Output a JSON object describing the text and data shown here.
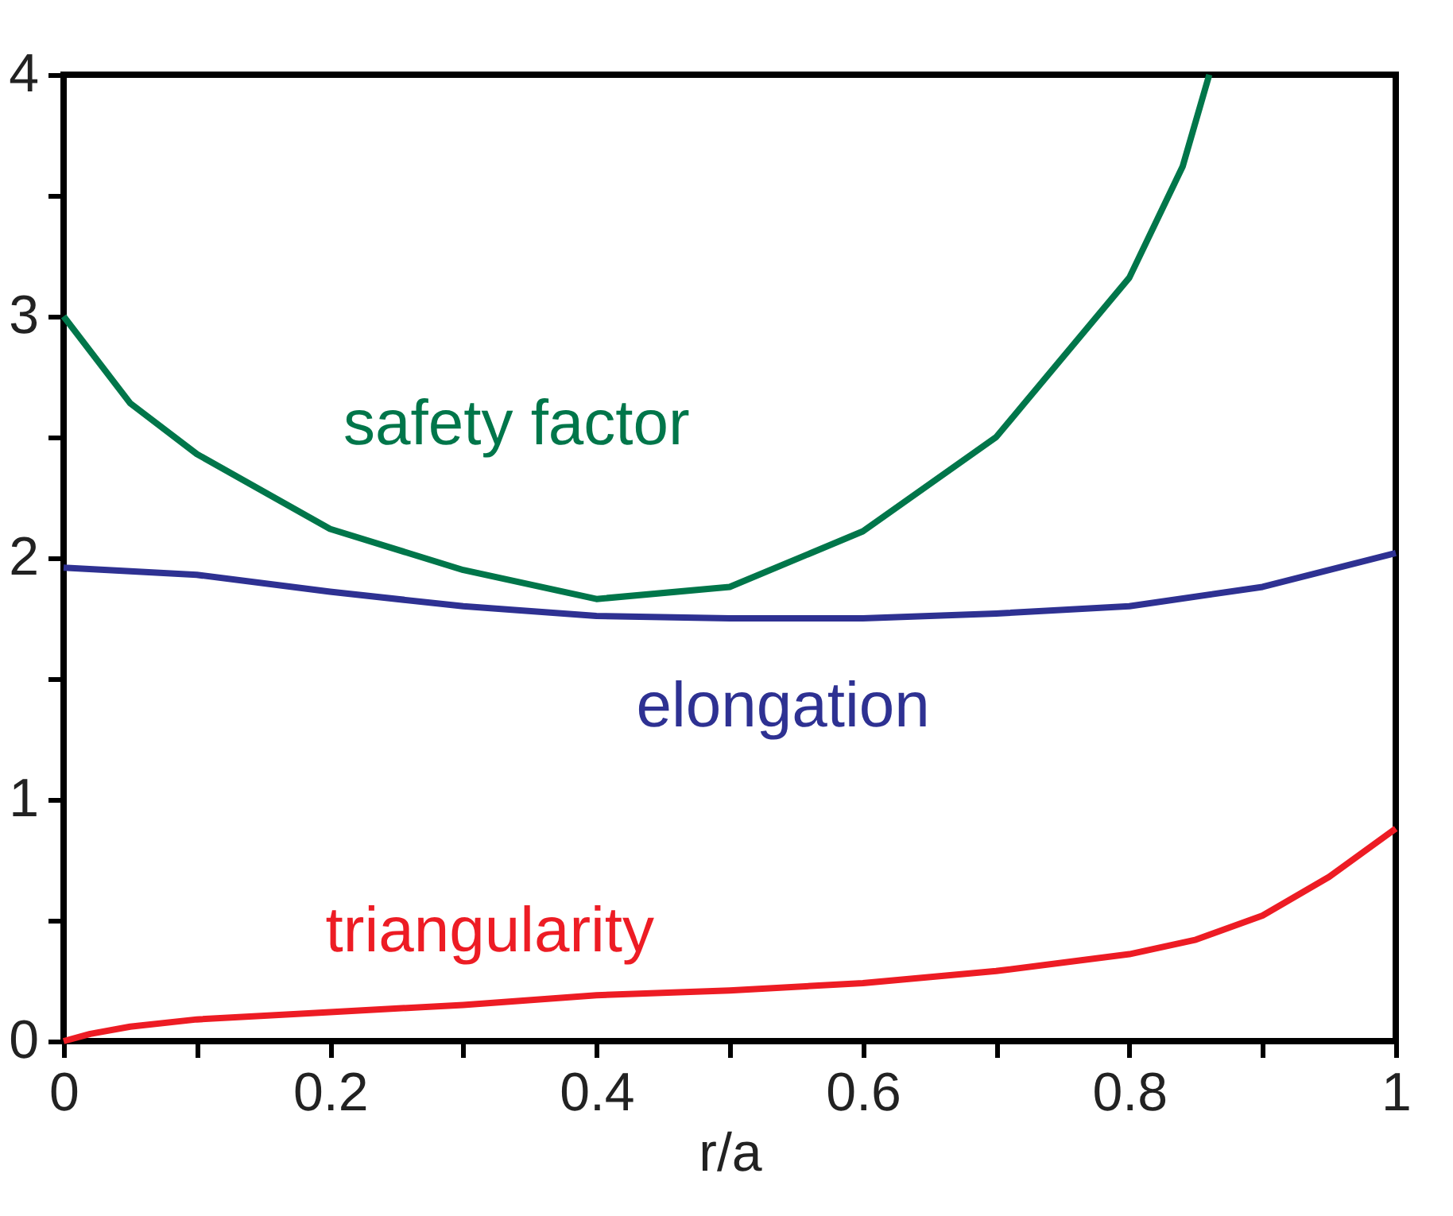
{
  "chart_data": {
    "type": "line",
    "xlabel": "r/a",
    "xlim": [
      0,
      1
    ],
    "ylim": [
      0,
      4
    ],
    "xticks": [
      0,
      {
        "value": 0.1,
        "label": null
      },
      {
        "value": 0.2,
        "label": "0.2"
      },
      {
        "value": 0.3,
        "label": null
      },
      {
        "value": 0.4,
        "label": "0.4"
      },
      {
        "value": 0.5,
        "label": null
      },
      {
        "value": 0.6,
        "label": "0.6"
      },
      {
        "value": 0.7,
        "label": null
      },
      {
        "value": 0.8,
        "label": "0.8"
      },
      {
        "value": 0.9,
        "label": null
      },
      1
    ],
    "yticks": [
      0,
      {
        "value": 0.5,
        "label": null
      },
      1,
      {
        "value": 1.5,
        "label": null
      },
      2,
      {
        "value": 2.5,
        "label": null
      },
      3,
      {
        "value": 3.5,
        "label": null
      },
      4
    ],
    "grid": false,
    "marker": "none",
    "line_style": "solid",
    "series": [
      {
        "name": "safety factor",
        "color": "#00764a",
        "x": [
          0,
          0.05,
          0.1,
          0.2,
          0.3,
          0.4,
          0.5,
          0.6,
          0.7,
          0.8,
          0.84,
          0.86
        ],
        "values": [
          3.0,
          2.64,
          2.43,
          2.12,
          1.95,
          1.83,
          1.88,
          2.11,
          2.5,
          3.16,
          3.62,
          4.0
        ]
      },
      {
        "name": "elongation",
        "color": "#2e3192",
        "x": [
          0,
          0.1,
          0.2,
          0.3,
          0.4,
          0.5,
          0.6,
          0.7,
          0.8,
          0.9,
          1
        ],
        "values": [
          1.96,
          1.93,
          1.86,
          1.8,
          1.76,
          1.75,
          1.75,
          1.77,
          1.8,
          1.88,
          2.02
        ]
      },
      {
        "name": "triangularity",
        "color": "#ed1c24",
        "x": [
          0,
          0.02,
          0.05,
          0.1,
          0.2,
          0.3,
          0.4,
          0.5,
          0.6,
          0.7,
          0.8,
          0.85,
          0.9,
          0.95,
          1
        ],
        "values": [
          0,
          0.03,
          0.06,
          0.09,
          0.12,
          0.15,
          0.19,
          0.21,
          0.24,
          0.29,
          0.36,
          0.42,
          0.52,
          0.68,
          0.88
        ]
      }
    ]
  }
}
